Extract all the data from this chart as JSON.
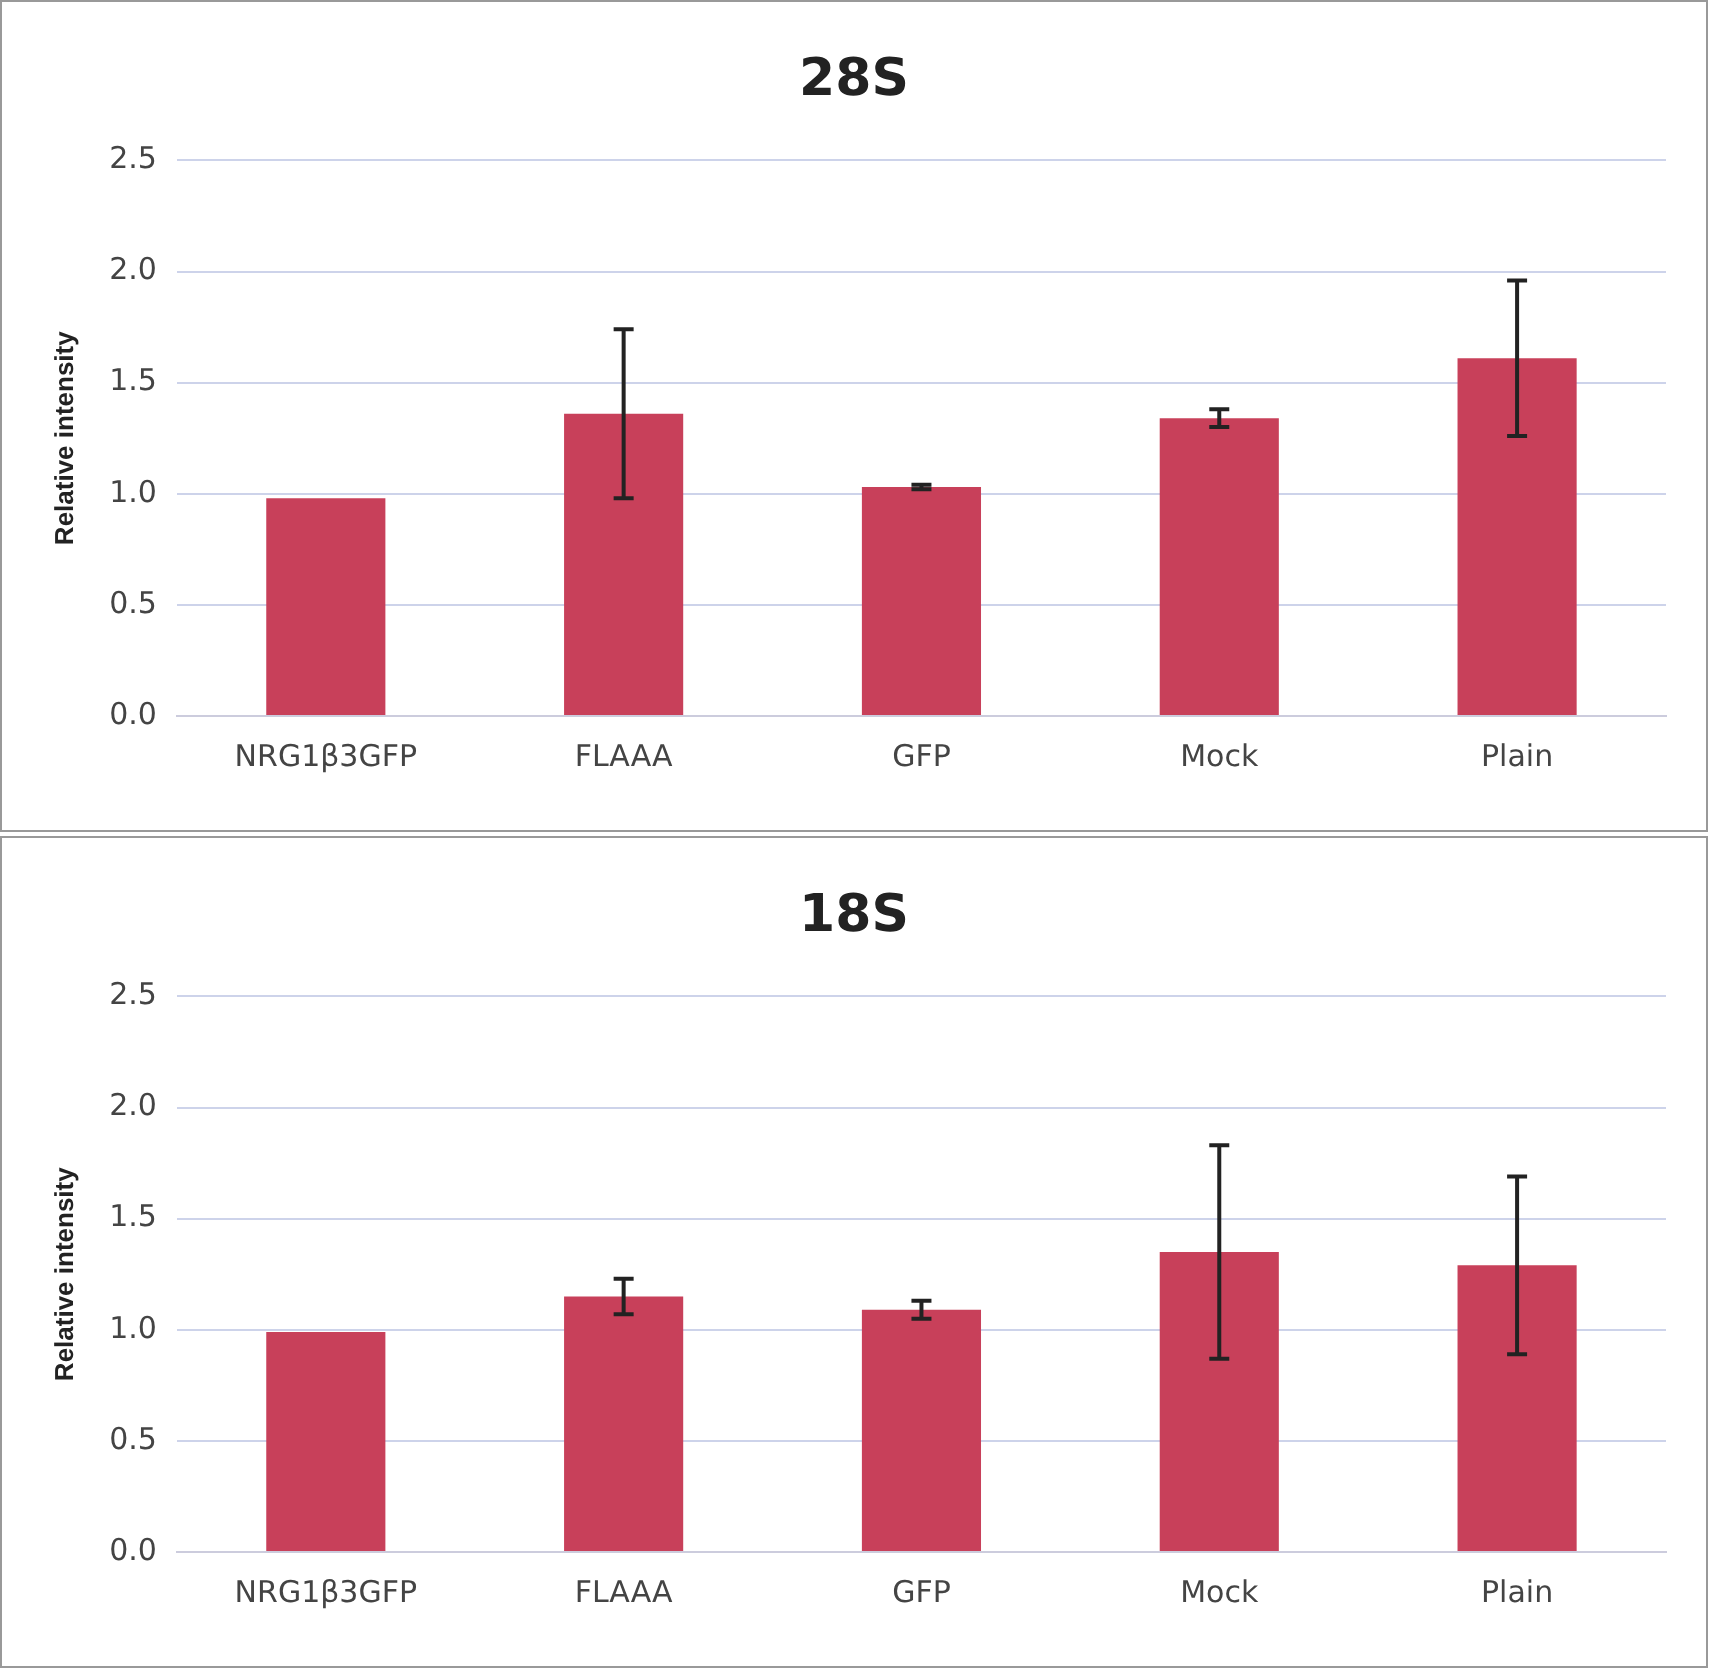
{
  "chart_data": [
    {
      "type": "bar",
      "title": "28S",
      "ylabel": "Relative intensity",
      "categories": [
        "NRG1β3GFP",
        "FLAAA",
        "GFP",
        "Mock",
        "Plain"
      ],
      "values": [
        0.98,
        1.36,
        1.03,
        1.34,
        1.61
      ],
      "errors": [
        null,
        0.38,
        0.01,
        0.04,
        0.35
      ],
      "color": "#c8405a",
      "ylim": [
        0,
        2.5
      ],
      "yticks": [
        {
          "value": 0,
          "label": "0.0"
        },
        0.5,
        {
          "value": 1,
          "label": "1.0"
        },
        1.5,
        {
          "value": 2,
          "label": "2.0"
        },
        2.5
      ],
      "grid": "y",
      "legend": false
    },
    {
      "type": "bar",
      "title": "18S",
      "ylabel": "Relative intensity",
      "categories": [
        "NRG1β3GFP",
        "FLAAA",
        "GFP",
        "Mock",
        "Plain"
      ],
      "values": [
        0.99,
        1.15,
        1.09,
        1.35,
        1.29
      ],
      "errors": [
        null,
        0.08,
        0.04,
        0.48,
        0.4
      ],
      "color": "#c8405a",
      "ylim": [
        0,
        2.5
      ],
      "yticks": [
        {
          "value": 0,
          "label": "0.0"
        },
        0.5,
        {
          "value": 1,
          "label": "1.0"
        },
        1.5,
        {
          "value": 2,
          "label": "2.0"
        },
        2.5
      ],
      "grid": "y",
      "legend": false
    }
  ]
}
